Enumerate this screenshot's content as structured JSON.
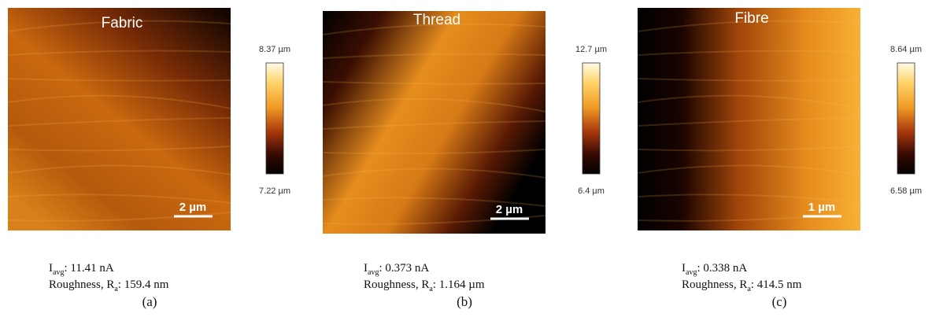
{
  "panels": [
    {
      "image_label": "Fabric",
      "colorbar": {
        "max": "8.37 µm",
        "min": "7.22 µm"
      },
      "scale_bar": "2 µm",
      "current": {
        "symbol": "I",
        "subscript": "avg",
        "value": ": 11.41 nA"
      },
      "roughness": {
        "label": "Roughness, R",
        "subscript": "a",
        "value": ": 159.4 nm"
      },
      "caption": "(a)"
    },
    {
      "image_label": "Thread",
      "colorbar": {
        "max": "12.7 µm",
        "min": "6.4 µm"
      },
      "scale_bar": "2 µm",
      "current": {
        "symbol": "I",
        "subscript": "avg",
        "value": ": 0.373 nA"
      },
      "roughness": {
        "label": "Roughness, R",
        "subscript": "a",
        "value": ": 1.164 µm"
      },
      "caption": "(b)"
    },
    {
      "image_label": "Fibre",
      "colorbar": {
        "max": "8.64 µm",
        "min": "6.58 µm"
      },
      "scale_bar": "1 µm",
      "current": {
        "symbol": "I",
        "subscript": "avg",
        "value": ": 0.338 nA"
      },
      "roughness": {
        "label": "Roughness, R",
        "subscript": "a",
        "value": ": 414.5 nm"
      },
      "caption": "(c)"
    }
  ]
}
